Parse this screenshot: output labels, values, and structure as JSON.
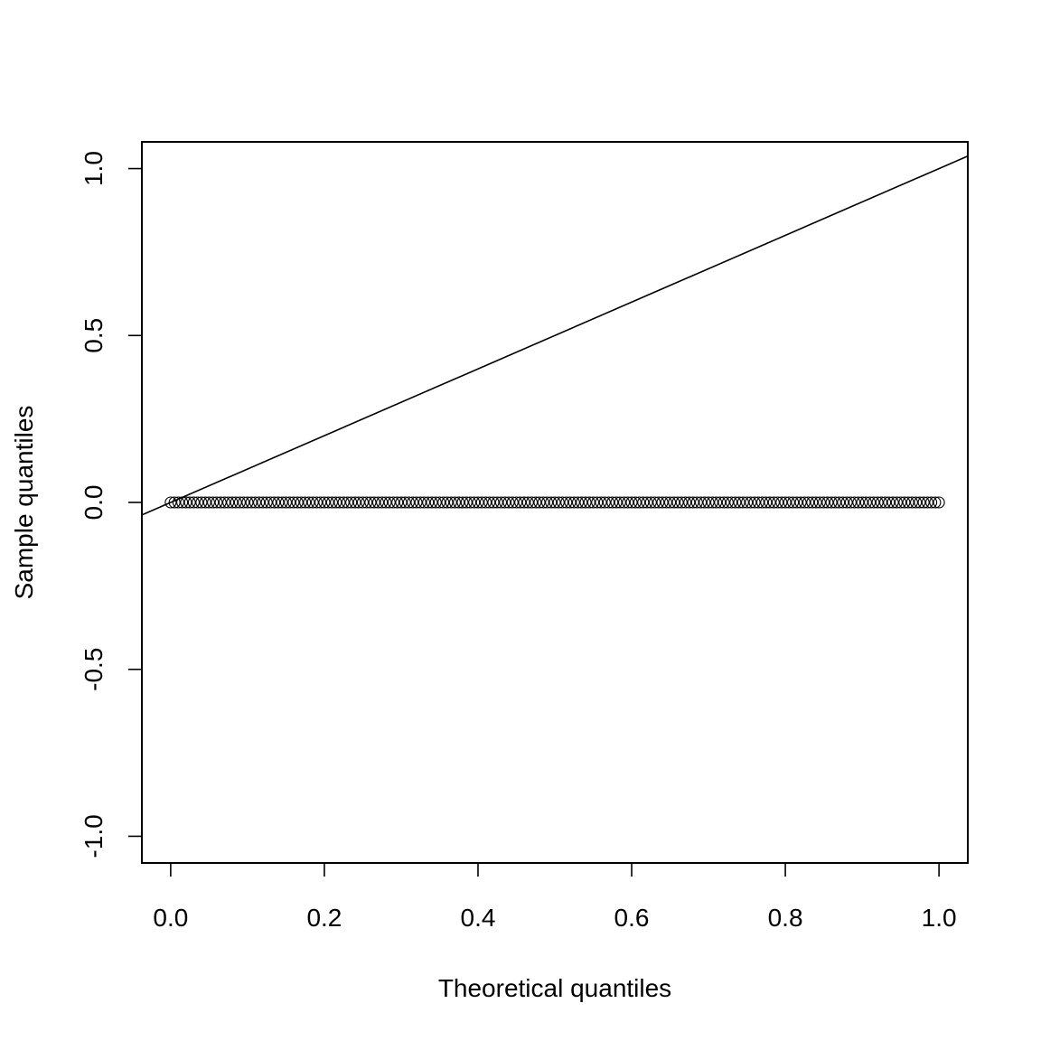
{
  "chart_data": {
    "type": "scatter",
    "title": "",
    "xlabel": "Theoretical quantiles",
    "ylabel": "Sample quantiles",
    "xlim": [
      -0.0375,
      1.0375
    ],
    "ylim": [
      -1.08,
      1.08
    ],
    "x_ticks": [
      0.0,
      0.2,
      0.4,
      0.6,
      0.8,
      1.0
    ],
    "x_tick_labels": [
      "0.0",
      "0.2",
      "0.4",
      "0.6",
      "0.8",
      "1.0"
    ],
    "y_ticks": [
      -1.0,
      -0.5,
      0.0,
      0.5,
      1.0
    ],
    "y_tick_labels": [
      "-1.0",
      "-0.5",
      "0.0",
      "0.5",
      "1.0"
    ],
    "grid": false,
    "series": [
      {
        "style": "open-circle",
        "x_range": [
          0.0,
          1.0
        ],
        "count": 201,
        "y": 0.0
      }
    ],
    "reference_line": {
      "intercept": 0.0,
      "slope": 1.0
    },
    "colors": {
      "points": "#000000",
      "line": "#000000"
    }
  }
}
